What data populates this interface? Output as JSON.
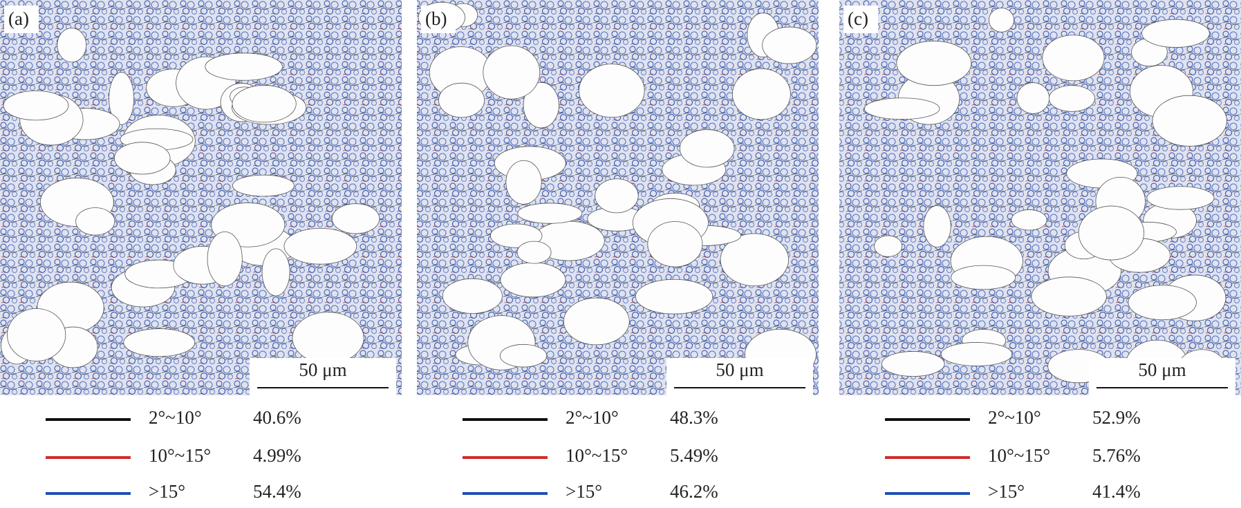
{
  "panels": [
    {
      "label": "(a)",
      "scale_bar": "50 μm",
      "legend": [
        {
          "range": "2°~10°",
          "percent": "40.6%"
        },
        {
          "range": "10°~15°",
          "percent": "4.99%"
        },
        {
          "range": ">15°",
          "percent": "54.4%"
        }
      ]
    },
    {
      "label": "(b)",
      "scale_bar": "50 μm",
      "legend": [
        {
          "range": "2°~10°",
          "percent": "48.3%"
        },
        {
          "range": "10°~15°",
          "percent": "5.49%"
        },
        {
          "range": ">15°",
          "percent": "46.2%"
        }
      ]
    },
    {
      "label": "(c)",
      "scale_bar": "50 μm",
      "legend": [
        {
          "range": "2°~10°",
          "percent": "52.9%"
        },
        {
          "range": "10°~15°",
          "percent": "5.76%"
        },
        {
          "range": ">15°",
          "percent": "41.4%"
        }
      ]
    }
  ]
}
